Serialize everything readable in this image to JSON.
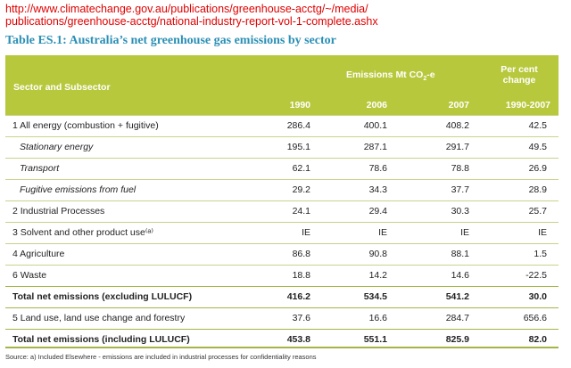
{
  "url_lines": [
    "http://www.climatechange.gov.au/publications/greenhouse-acctg/~/media/",
    "publications/greenhouse-acctg/national-industry-report-vol-1-complete.ashx"
  ],
  "table_title": "Table ES.1: Australia’s net greenhouse gas emissions by sector",
  "header": {
    "sector": "Sector and Subsector",
    "emissions_main": "Emissions Mt CO",
    "emissions_sub": "2",
    "emissions_tail": "-e",
    "pct_line1": "Per cent",
    "pct_line2": "change",
    "years": [
      "1990",
      "2006",
      "2007",
      "1990-2007"
    ]
  },
  "rows": [
    {
      "label": "1 All energy (combustion + fugitive)",
      "v1990": "286.4",
      "v2006": "400.1",
      "v2007": "408.2",
      "pct": "42.5"
    },
    {
      "label": "Stationary energy",
      "v1990": "195.1",
      "v2006": "287.1",
      "v2007": "291.7",
      "pct": "49.5"
    },
    {
      "label": "Transport",
      "v1990": "62.1",
      "v2006": "78.6",
      "v2007": "78.8",
      "pct": "26.9"
    },
    {
      "label": "Fugitive emissions from fuel",
      "v1990": "29.2",
      "v2006": "34.3",
      "v2007": "37.7",
      "pct": "28.9"
    },
    {
      "label": "2 Industrial Processes",
      "v1990": "24.1",
      "v2006": "29.4",
      "v2007": "30.3",
      "pct": "25.7"
    },
    {
      "label": "3 Solvent and other product use⁽ᵃ⁾",
      "v1990": "IE",
      "v2006": "IE",
      "v2007": "IE",
      "pct": "IE"
    },
    {
      "label": "4 Agriculture",
      "v1990": "86.8",
      "v2006": "90.8",
      "v2007": "88.1",
      "pct": "1.5"
    },
    {
      "label": "6 Waste",
      "v1990": "18.8",
      "v2006": "14.2",
      "v2007": "14.6",
      "pct": "-22.5"
    },
    {
      "label": "Total net emissions (excluding LULUCF)",
      "v1990": "416.2",
      "v2006": "534.5",
      "v2007": "541.2",
      "pct": "30.0"
    },
    {
      "label": "5 Land use, land use change and forestry",
      "v1990": "37.6",
      "v2006": "16.6",
      "v2007": "284.7",
      "pct": "656.6"
    },
    {
      "label": "Total net emissions (including LULUCF)",
      "v1990": "453.8",
      "v2006": "551.1",
      "v2007": "825.9",
      "pct": "82.0"
    }
  ],
  "source_note": "Source: a) Included Elsewhere - emissions are included in industrial processes for confidentiality reasons"
}
